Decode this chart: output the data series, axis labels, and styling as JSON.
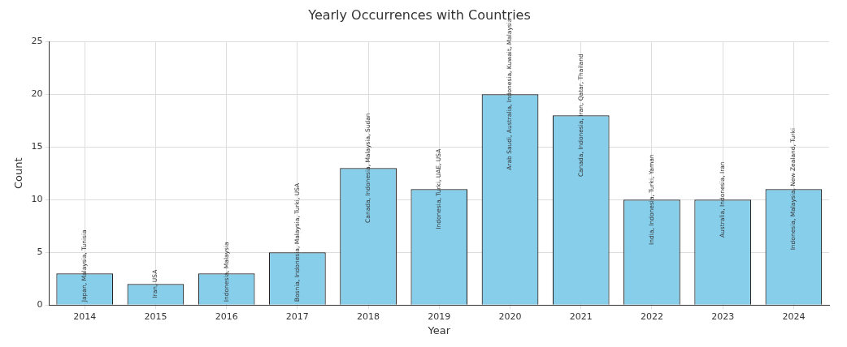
{
  "chart_data": {
    "type": "bar",
    "title": "Yearly Occurrences with Countries",
    "xlabel": "Year",
    "ylabel": "Count",
    "categories": [
      "2014",
      "2015",
      "2016",
      "2017",
      "2018",
      "2019",
      "2020",
      "2021",
      "2022",
      "2023",
      "2024"
    ],
    "values": [
      3,
      2,
      3,
      5,
      13,
      11,
      20,
      18,
      10,
      10,
      11
    ],
    "color": "#87ceeb",
    "ylim": [
      0,
      25
    ],
    "yticks": [
      0,
      5,
      10,
      15,
      20,
      25
    ],
    "grid": true,
    "annotations": [
      {
        "text": "Japan, Malaysia, Tunisia",
        "x": "2014",
        "y": 3
      },
      {
        "text": "Iran, USA",
        "x": "2015",
        "y": 2
      },
      {
        "text": "Indonesia, Malaysia",
        "x": "2016",
        "y": 3
      },
      {
        "text": "Bosnia, Indonesia, Malaysia, Turki, USA",
        "x": "2017",
        "y": 5
      },
      {
        "text": "Canada, Indonesia, Malaysia, Sudan",
        "x": "2018",
        "y": 13
      },
      {
        "text": "Indonesia, Turki, UAE, USA",
        "x": "2019",
        "y": 11
      },
      {
        "text": "Arab Saudi, Australia, Indonesia, Kuwait, Malaysia",
        "x": "2020",
        "y": 20
      },
      {
        "text": "Canada, Indonesia, Iran, Qatar, Thailand",
        "x": "2021",
        "y": 18
      },
      {
        "text": "India, Indonesia, Turki, Yaman",
        "x": "2022",
        "y": 10
      },
      {
        "text": "Australia, Indonesia, Iran",
        "x": "2023",
        "y": 10
      },
      {
        "text": "Indonesia, Malaysia, New Zealand, Turki",
        "x": "2024",
        "y": 11
      }
    ]
  }
}
